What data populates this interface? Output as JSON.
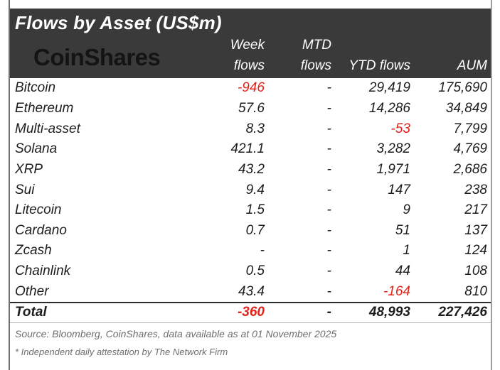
{
  "chart_data": {
    "type": "table",
    "title": "Flows by Asset (US$m)",
    "brand": "CoinShares",
    "columns": [
      {
        "line1": "Week",
        "line2": "flows"
      },
      {
        "line1": "MTD",
        "line2": "flows"
      },
      {
        "line1": "",
        "line2": "YTD flows"
      },
      {
        "line1": "",
        "line2": "AUM"
      }
    ],
    "rows": [
      {
        "asset": "Bitcoin",
        "week": "-946",
        "mtd": "-",
        "ytd": "29,419",
        "aum": "175,690"
      },
      {
        "asset": "Ethereum",
        "week": "57.6",
        "mtd": "-",
        "ytd": "14,286",
        "aum": "34,849"
      },
      {
        "asset": "Multi-asset",
        "week": "8.3",
        "mtd": "-",
        "ytd": "-53",
        "aum": "7,799"
      },
      {
        "asset": "Solana",
        "week": "421.1",
        "mtd": "-",
        "ytd": "3,282",
        "aum": "4,769"
      },
      {
        "asset": "XRP",
        "week": "43.2",
        "mtd": "-",
        "ytd": "1,971",
        "aum": "2,686"
      },
      {
        "asset": "Sui",
        "week": "9.4",
        "mtd": "-",
        "ytd": "147",
        "aum": "238"
      },
      {
        "asset": "Litecoin",
        "week": "1.5",
        "mtd": "-",
        "ytd": "9",
        "aum": "217"
      },
      {
        "asset": "Cardano",
        "week": "0.7",
        "mtd": "-",
        "ytd": "51",
        "aum": "137"
      },
      {
        "asset": "Zcash",
        "week": "-",
        "mtd": "-",
        "ytd": "1",
        "aum": "124"
      },
      {
        "asset": "Chainlink",
        "week": "0.5",
        "mtd": "-",
        "ytd": "44",
        "aum": "108"
      },
      {
        "asset": "Other",
        "week": "43.4",
        "mtd": "-",
        "ytd": "-164",
        "aum": "810"
      }
    ],
    "total": {
      "asset": "Total",
      "week": "-360",
      "mtd": "-",
      "ytd": "48,993",
      "aum": "227,426"
    }
  },
  "footer": {
    "source": "Source: Bloomberg, CoinShares, data available as at 01 November 2025",
    "attestation": "* Independent daily attestation by The Network Firm"
  },
  "colors": {
    "header_bg": "#3a3a3a",
    "header_text": "#ffffff",
    "logo_text": "#141414",
    "body_text": "#1d1d1d",
    "negative": "#e2231a",
    "muted_text": "#6e6e6e"
  }
}
